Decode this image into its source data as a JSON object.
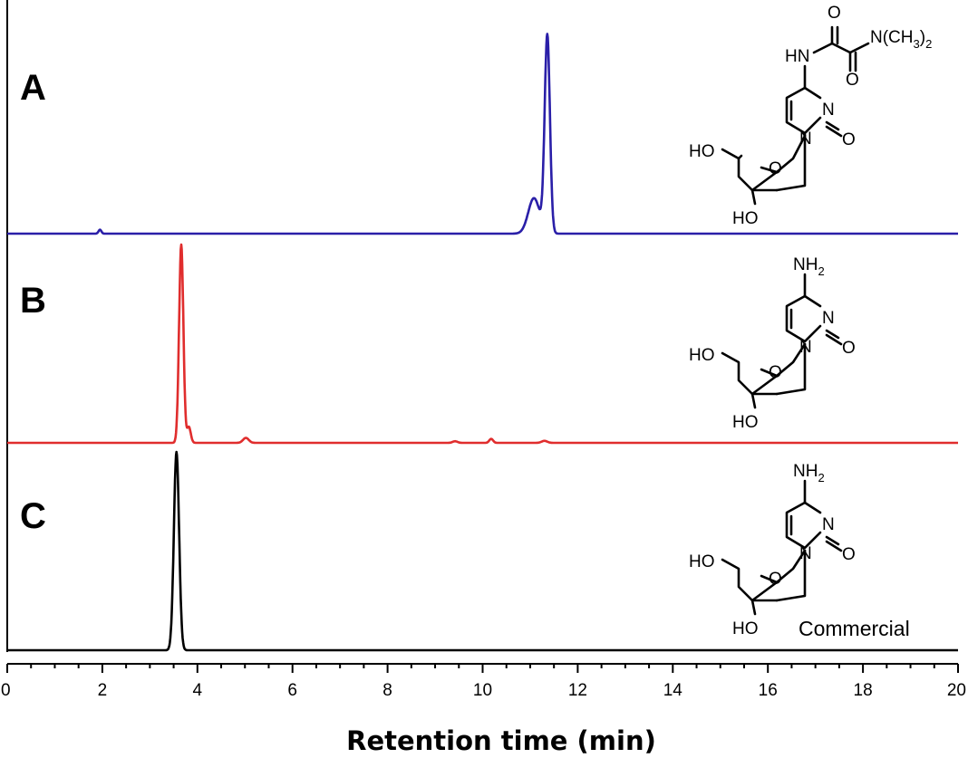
{
  "chart_data": {
    "type": "line",
    "xlabel": "Retention time (min)",
    "ylabel": "",
    "xlim": [
      0,
      20
    ],
    "x_ticks": [
      "0",
      "2",
      "4",
      "6",
      "8",
      "10",
      "12",
      "14",
      "16",
      "18",
      "20"
    ],
    "x_minor_step": 0.5,
    "grid": false,
    "series": [
      {
        "label": "A",
        "color": "#2a1fa8",
        "peaks": [
          {
            "rt": 1.95,
            "height": 0.02,
            "width": 0.03
          },
          {
            "rt": 11.08,
            "height": 0.18,
            "width": 0.12
          },
          {
            "rt": 11.36,
            "height": 1.0,
            "width": 0.055
          }
        ],
        "structure": {
          "top_group": [
            "O",
            "N(CH",
            "3",
            ")",
            "2",
            "HN",
            "O"
          ],
          "ring_atoms": [
            "N",
            "N",
            "O"
          ],
          "sugar_atoms": [
            "HO",
            "O",
            "HO"
          ]
        }
      },
      {
        "label": "B",
        "color": "#e02d2d",
        "peaks": [
          {
            "rt": 3.66,
            "height": 1.0,
            "width": 0.045
          },
          {
            "rt": 3.82,
            "height": 0.08,
            "width": 0.04
          },
          {
            "rt": 5.02,
            "height": 0.025,
            "width": 0.06
          },
          {
            "rt": 9.42,
            "height": 0.008,
            "width": 0.05
          },
          {
            "rt": 10.18,
            "height": 0.02,
            "width": 0.04
          },
          {
            "rt": 11.3,
            "height": 0.01,
            "width": 0.06
          }
        ],
        "structure": {
          "top_group": [
            "NH",
            "2"
          ],
          "ring_atoms": [
            "N",
            "N",
            "O"
          ],
          "sugar_atoms": [
            "HO",
            "O",
            "HO"
          ]
        }
      },
      {
        "label": "C",
        "color": "#000000",
        "peaks": [
          {
            "rt": 3.56,
            "height": 1.0,
            "width": 0.055
          }
        ],
        "annotation": "Commercial",
        "structure": {
          "top_group": [
            "NH",
            "2"
          ],
          "ring_atoms": [
            "N",
            "N",
            "O"
          ],
          "sugar_atoms": [
            "HO",
            "O",
            "HO"
          ]
        }
      }
    ]
  }
}
